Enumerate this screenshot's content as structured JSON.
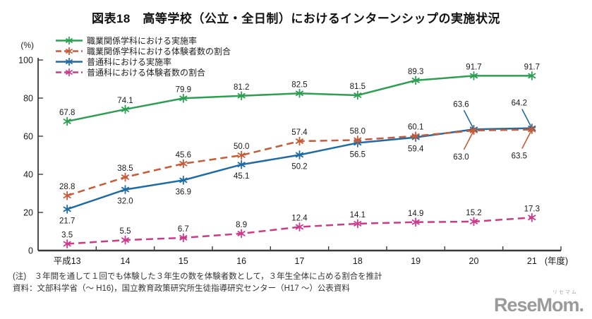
{
  "title": "図表18　高等学校（公立・全日制）におけるインターンシップの実施状況",
  "notes": {
    "note1": "(注)　３年間を通して１回でも体験した３年生の数を体験者数として，３年生全体に占める割合を推計",
    "note2": "資料：文部科学省（～ H16)，国立教育政策研究所生徒指導研究センター（H17 ～）公表資料"
  },
  "logo": {
    "text": "ReseMom.",
    "ruby": "リセマム"
  },
  "colors": {
    "axis": "#3a3a3a",
    "label_text": "#1a1a1a",
    "series_green": "#2d9e52",
    "series_orange": "#c55b38",
    "series_blue": "#1e6ca3",
    "series_pink": "#cb3a8c"
  },
  "chart_data": {
    "type": "line",
    "title": "図表18　高等学校（公立・全日制）におけるインターンシップの実施状況",
    "categories": [
      "平成13",
      "14",
      "15",
      "16",
      "17",
      "18",
      "19",
      "20",
      "21"
    ],
    "x_axis_note": "(年度)",
    "y_unit_label": "(%)",
    "ylim": [
      0,
      100
    ],
    "y_ticks": [
      0,
      20,
      40,
      60,
      80,
      100
    ],
    "grid": false,
    "legend_position": "top-left",
    "series": [
      {
        "name": "職業関係学科における実施率",
        "color": "#2d9e52",
        "dashed": false,
        "values": [
          67.8,
          74.1,
          79.9,
          81.2,
          82.5,
          81.5,
          89.3,
          91.7,
          91.7
        ],
        "label_pos": [
          "above",
          "above",
          "above",
          "above",
          "above",
          "above",
          "above",
          "above",
          "above"
        ]
      },
      {
        "name": "職業関係学科における体験者数の割合",
        "color": "#c55b38",
        "dashed": true,
        "values": [
          28.8,
          38.5,
          45.6,
          50.0,
          57.4,
          58.0,
          60.1,
          63.0,
          63.5
        ],
        "label_pos": [
          "above",
          "above",
          "above",
          "above",
          "above",
          "above",
          "above",
          "below-leader",
          "below-leader"
        ]
      },
      {
        "name": "普通科における実施率",
        "color": "#1e6ca3",
        "dashed": false,
        "values": [
          21.7,
          32.0,
          36.9,
          45.1,
          50.2,
          56.5,
          59.4,
          63.6,
          64.2
        ],
        "label_pos": [
          "below",
          "below",
          "below",
          "below",
          "below",
          "below",
          "below",
          "above-leader",
          "above-leader"
        ]
      },
      {
        "name": "普通科における体験者数の割合",
        "color": "#cb3a8c",
        "dashed": true,
        "values": [
          3.5,
          5.5,
          6.7,
          8.9,
          12.4,
          14.1,
          14.9,
          15.2,
          17.3
        ],
        "label_pos": [
          "above",
          "above",
          "above",
          "above",
          "above",
          "above",
          "above",
          "above",
          "above"
        ]
      }
    ]
  }
}
